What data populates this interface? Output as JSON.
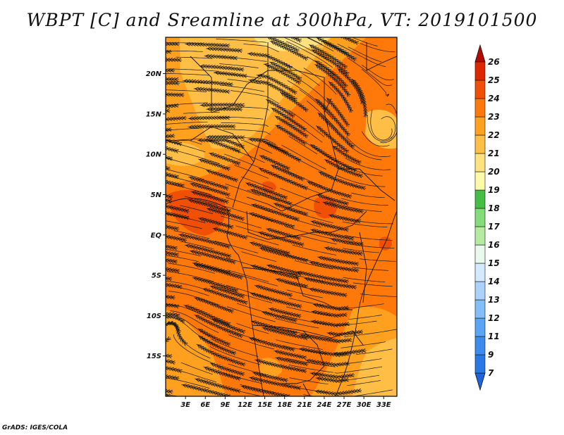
{
  "title": "WBPT [C] and Sreamline at 300hPa, VT: 2019101500",
  "footer": "GrADS: IGES/COLA",
  "map": {
    "lat_labels": [
      "20N",
      "15N",
      "10N",
      "5N",
      "EQ",
      "5S",
      "10S",
      "15S"
    ],
    "lat_values": [
      20,
      15,
      10,
      5,
      0,
      -5,
      -10,
      -15
    ],
    "lon_labels": [
      "3E",
      "6E",
      "9E",
      "12E",
      "15E",
      "18E",
      "21E",
      "24E",
      "27E",
      "30E",
      "33E"
    ],
    "lon_values": [
      3,
      6,
      9,
      12,
      15,
      18,
      21,
      24,
      27,
      30,
      33
    ],
    "lat_range": [
      -20,
      24.5
    ],
    "lon_range": [
      0,
      35
    ],
    "variable": "WBPT",
    "units": "C",
    "level": "300hPa",
    "valid_time": "2019101500"
  },
  "colorbar": {
    "labels": [
      "7",
      "9",
      "11",
      "12",
      "13",
      "14",
      "15",
      "16",
      "17",
      "18",
      "19",
      "20",
      "21",
      "22",
      "23",
      "24",
      "25",
      "26"
    ],
    "colors": [
      "#1e64dc",
      "#2878e6",
      "#3c8cf0",
      "#5aa5f5",
      "#82bef8",
      "#aad2fa",
      "#d2ebfc",
      "#ebf8ee",
      "#b4eba0",
      "#82dc78",
      "#46be46",
      "#fffaaa",
      "#ffe17d",
      "#ffbe46",
      "#ffa01e",
      "#ff780a",
      "#f05005",
      "#dc2800",
      "#b40a00"
    ]
  },
  "colors": {
    "accent": "#ff780a",
    "frame": "#111111"
  }
}
